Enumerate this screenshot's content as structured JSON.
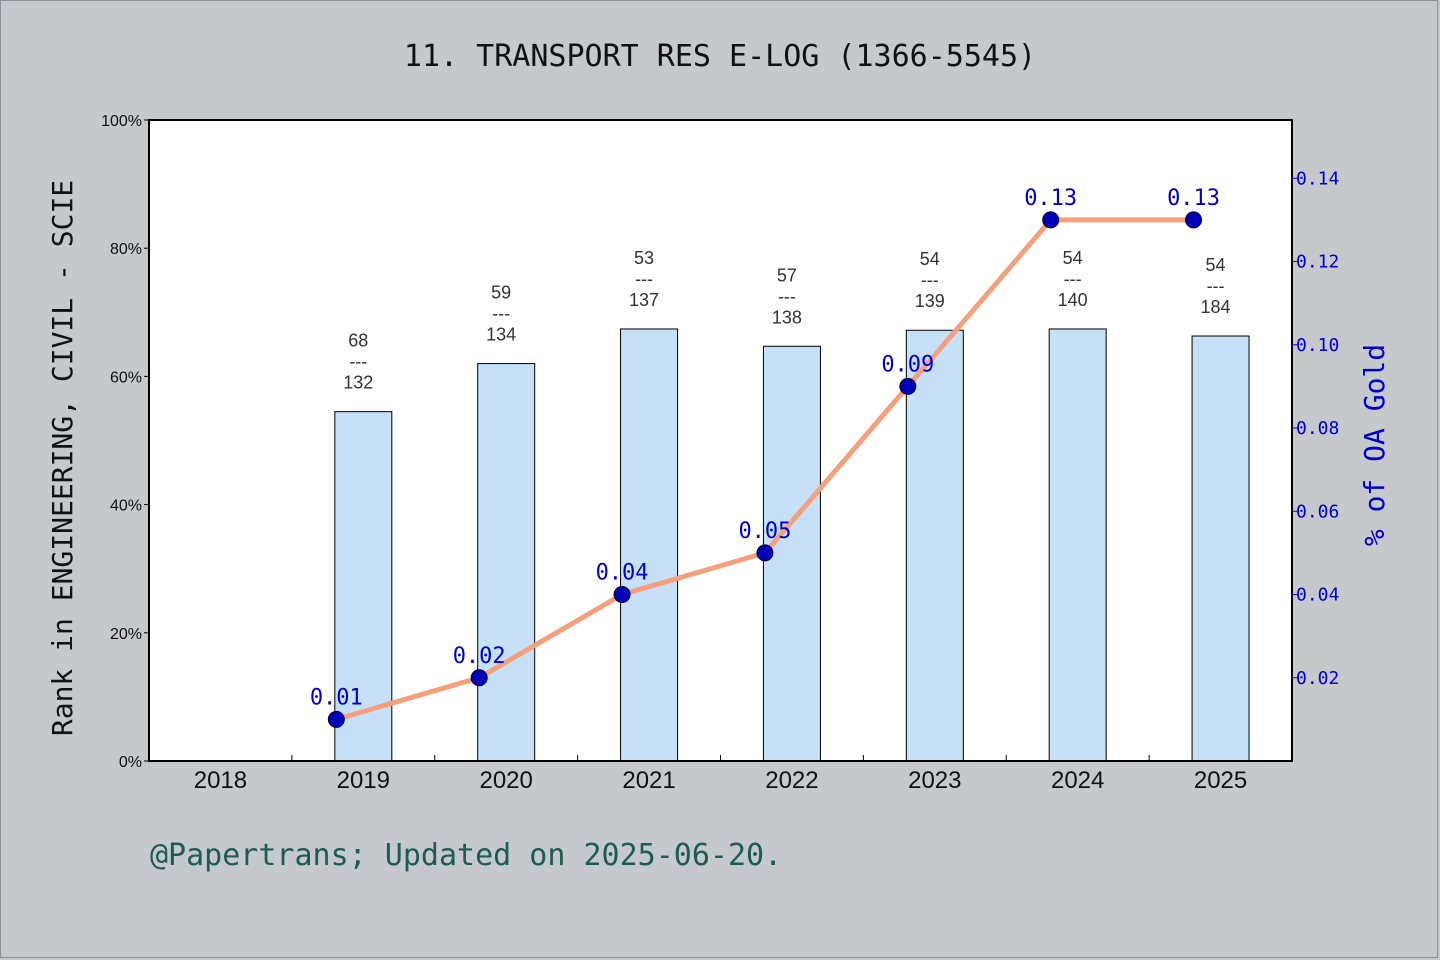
{
  "title": "11. TRANSPORT RES E-LOG (1366-5545)",
  "footer": "@Papertrans; Updated on 2025-06-20.",
  "colors": {
    "background": "#c5c9cc",
    "plot_bg": "#ffffff",
    "bar_fill": "#c6e0f7",
    "line": "#f4a07c",
    "line_highlight": "#c9c9e6",
    "marker": "#0000bb",
    "right_axis": "#0000ff"
  },
  "chart_data": {
    "type": "bar",
    "categories": [
      "2018",
      "2019",
      "2020",
      "2021",
      "2022",
      "2023",
      "2024",
      "2025"
    ],
    "left_axis": {
      "label": "Rank in ENGINEERING, CIVIL - SCIE",
      "ylim": [
        0,
        100
      ],
      "ticks": [
        "0%",
        "20%",
        "40%",
        "60%",
        "80%",
        "100%"
      ]
    },
    "right_axis": {
      "label": "% of OA Gold",
      "ylim": [
        0,
        0.154
      ],
      "ticks": [
        "0.02",
        "0.04",
        "0.06",
        "0.08",
        "0.10",
        "0.12",
        "0.14"
      ],
      "tick_values": [
        0.02,
        0.04,
        0.06,
        0.08,
        0.1,
        0.12,
        0.14
      ]
    },
    "bars": [
      {
        "year": "2018",
        "percent": null,
        "rank": "",
        "total": ""
      },
      {
        "year": "2019",
        "percent": 54.5,
        "rank": "68",
        "total": "132"
      },
      {
        "year": "2020",
        "percent": 62.0,
        "rank": "59",
        "total": "134"
      },
      {
        "year": "2021",
        "percent": 67.4,
        "rank": "53",
        "total": "137"
      },
      {
        "year": "2022",
        "percent": 64.7,
        "rank": "57",
        "total": "138"
      },
      {
        "year": "2023",
        "percent": 67.2,
        "rank": "54",
        "total": "139"
      },
      {
        "year": "2024",
        "percent": 67.4,
        "rank": "54",
        "total": "140"
      },
      {
        "year": "2025",
        "percent": 66.3,
        "rank": "54",
        "total": "184"
      }
    ],
    "series": [
      {
        "type": "line",
        "axis": "right",
        "x": [
          "2019",
          "2020",
          "2021",
          "2022",
          "2023",
          "2024",
          "2025"
        ],
        "values": [
          0.01,
          0.02,
          0.04,
          0.05,
          0.09,
          0.13,
          0.13
        ],
        "labels": [
          "0.01",
          "0.02",
          "0.04",
          "0.05",
          "0.09",
          "0.13",
          "0.13"
        ]
      }
    ],
    "rank_separator": "---",
    "grid": false
  }
}
